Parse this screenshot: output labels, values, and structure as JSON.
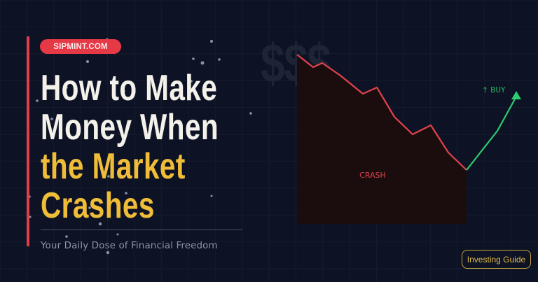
{
  "brand_badge": "SIPMINT.COM",
  "title": {
    "lines_white": [
      "How to Make",
      "Money When"
    ],
    "lines_yellow": [
      "the Market",
      "Crashes"
    ]
  },
  "tagline": "Your Daily Dose of Financial Freedom",
  "decor_symbol": "$$$",
  "illustration": {
    "crash_label": "CRASH",
    "buy_label": "↑ BUY"
  },
  "category_tag": "Investing Guide",
  "colors": {
    "background": "#0d1324",
    "accent_red": "#e63946",
    "title_yellow": "#f0bd38",
    "up_green": "#2ecc71"
  }
}
